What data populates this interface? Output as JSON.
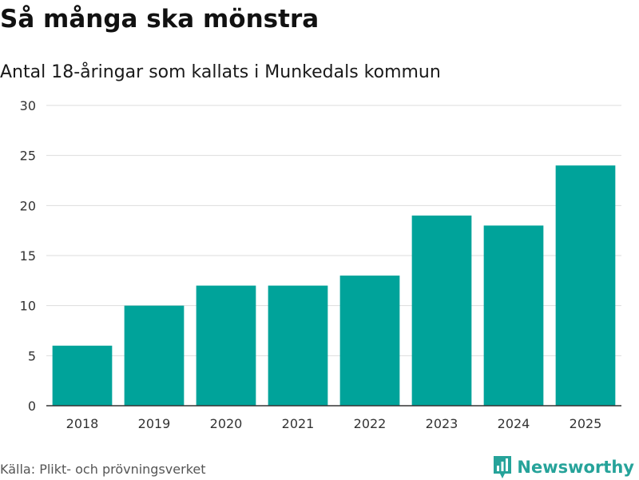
{
  "title": "Så många ska mönstra",
  "subtitle": "Antal 18-åringar som kallats i Munkedals kommun",
  "source": "Källa: Plikt- och prövningsverket",
  "brand": {
    "name": "Newsworthy",
    "icon": "newsworthy-logo-icon",
    "color": "#26a39a"
  },
  "colors": {
    "bar": "#00a39a",
    "grid": "#dddddd",
    "axis": "#333333"
  },
  "chart_data": {
    "type": "bar",
    "title": "Så många ska mönstra",
    "subtitle": "Antal 18-åringar som kallats i Munkedals kommun",
    "xlabel": "",
    "ylabel": "",
    "categories": [
      "2018",
      "2019",
      "2020",
      "2021",
      "2022",
      "2023",
      "2024",
      "2025"
    ],
    "values": [
      6,
      10,
      12,
      12,
      13,
      19,
      18,
      24
    ],
    "ylim": [
      0,
      30
    ],
    "yticks": [
      0,
      5,
      10,
      15,
      20,
      25,
      30
    ],
    "grid": true,
    "legend": "none"
  }
}
